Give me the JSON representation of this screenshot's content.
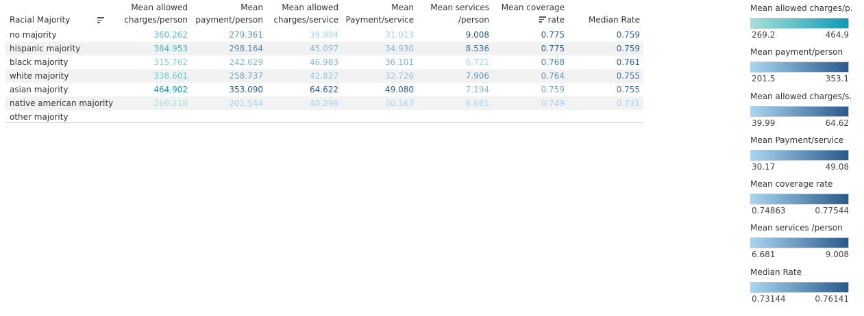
{
  "colors": {
    "teal_low": "#a7e0d8",
    "teal_high": "#0e9ab8",
    "blue_low": "#a8d5f0",
    "blue_high": "#2a5a8c"
  },
  "table": {
    "headers": {
      "racial_majority": "Racial Majority",
      "col1_line1": "Mean allowed",
      "col1_line2": "charges/person",
      "col2_line1": "Mean",
      "col2_line2": "payment/person",
      "col3_line1": "Mean allowed",
      "col3_line2": "charges/service",
      "col4_line1": "Mean",
      "col4_line2": "Payment/service",
      "col5_line1": "Mean services",
      "col5_line2": "/person",
      "col6_line1": "Mean coverage",
      "col6_line2": "rate",
      "col7_line1": "",
      "col7_line2": "Median Rate"
    },
    "sort_icon": "sort-descending-icon",
    "rows": [
      {
        "label": "no majority",
        "values": [
          "360.262",
          "279.361",
          "39.994",
          "31.013",
          "9.008",
          "0.775",
          "0.759"
        ]
      },
      {
        "label": "hispanic majority",
        "values": [
          "384.953",
          "298.164",
          "45.097",
          "34.930",
          "8.536",
          "0.775",
          "0.759"
        ]
      },
      {
        "label": "black majority",
        "values": [
          "315.762",
          "242.629",
          "46.983",
          "36.101",
          "6.721",
          "0.768",
          "0.761"
        ]
      },
      {
        "label": "white majority",
        "values": [
          "338.601",
          "258.737",
          "42.827",
          "32.726",
          "7.906",
          "0.764",
          "0.755"
        ]
      },
      {
        "label": "asian majority",
        "values": [
          "464.902",
          "353.090",
          "64.622",
          "49.080",
          "7.194",
          "0.759",
          "0.755"
        ]
      },
      {
        "label": "native american majority",
        "values": [
          "269.218",
          "201.544",
          "40.296",
          "30.167",
          "6.681",
          "0.749",
          "0.731"
        ]
      },
      {
        "label": "other majority",
        "values": [
          "",
          "",
          "",
          "",
          "",
          "",
          ""
        ]
      }
    ]
  },
  "legends": [
    {
      "title": "Mean allowed charges/p...",
      "min": "269.2",
      "max": "464.9",
      "palette": "teal"
    },
    {
      "title": "Mean payment/person",
      "min": "201.5",
      "max": "353.1",
      "palette": "blue"
    },
    {
      "title": "Mean allowed charges/s...",
      "min": "39.99",
      "max": "64.62",
      "palette": "blue"
    },
    {
      "title": "Mean Payment/service",
      "min": "30.17",
      "max": "49.08",
      "palette": "blue"
    },
    {
      "title": "Mean coverage rate",
      "min": "0.74863",
      "max": "0.77544",
      "palette": "blue"
    },
    {
      "title": "Mean services /person",
      "min": "6.681",
      "max": "9.008",
      "palette": "blue"
    },
    {
      "title": "Median Rate",
      "min": "0.73144",
      "max": "0.76141",
      "palette": "blue"
    }
  ]
}
